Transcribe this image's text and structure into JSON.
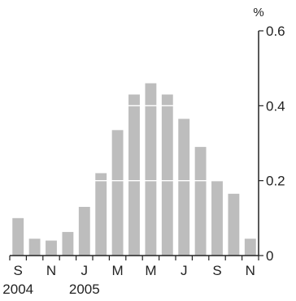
{
  "chart_data": {
    "type": "bar",
    "unit": "%",
    "categories": [
      "Sep 2004",
      "Oct 2004",
      "Nov 2004",
      "Dec 2004",
      "Jan 2005",
      "Feb 2005",
      "Mar 2005",
      "Apr 2005",
      "May 2005",
      "Jun 2005",
      "Jul 2005",
      "Aug 2005",
      "Sep 2005",
      "Oct 2005",
      "Nov 2005"
    ],
    "values": [
      0.1,
      0.045,
      0.04,
      0.063,
      0.13,
      0.22,
      0.335,
      0.43,
      0.46,
      0.43,
      0.365,
      0.29,
      0.2,
      0.165,
      0.045
    ],
    "x_tick_labels": [
      "S",
      "",
      "N",
      "",
      "J",
      "",
      "M",
      "",
      "M",
      "",
      "J",
      "",
      "S",
      "",
      "N"
    ],
    "year_labels": [
      {
        "index": 0,
        "text": "2004"
      },
      {
        "index": 4,
        "text": "2005"
      }
    ],
    "ylim": [
      0,
      0.6
    ],
    "y_ticks": [
      0,
      0.2,
      0.4,
      0.6
    ],
    "y_tick_labels": [
      "0",
      "0.2",
      "0.4",
      "0.6"
    ],
    "y_axis_side": "right",
    "gridlines_at": [
      0.2,
      0.4
    ],
    "gridline_color": "#ffffff",
    "bar_color": "#bdbdbd",
    "axis_color": "#222222",
    "title": "",
    "xlabel": "",
    "ylabel": ""
  }
}
